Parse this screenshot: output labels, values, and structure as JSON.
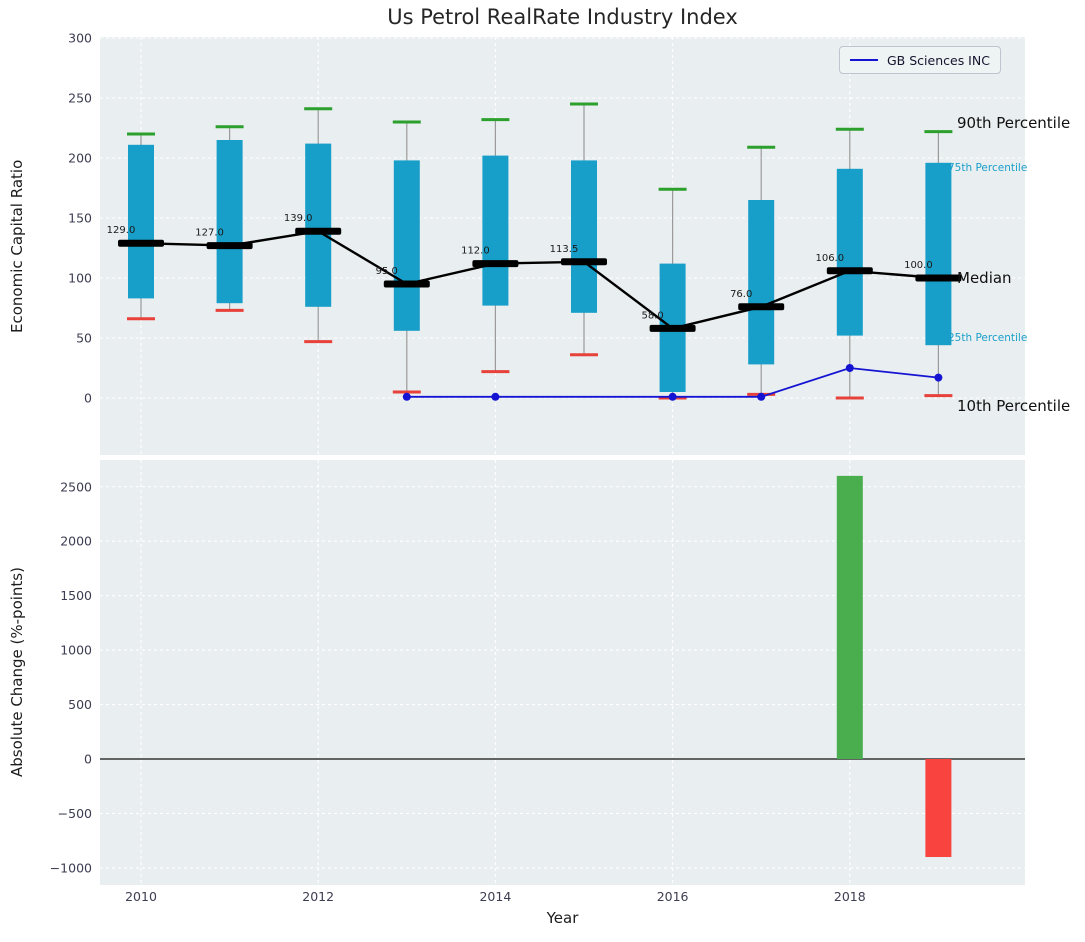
{
  "title": "Us Petrol RealRate Industry Index",
  "legend": {
    "label": "GB Sciences INC"
  },
  "axes": {
    "top": {
      "ylabel": "Economic Capital Ratio"
    },
    "bottom": {
      "ylabel": "Absolute Change (%-points)",
      "xlabel": "Year"
    }
  },
  "annotations": {
    "p90": {
      "label": "90th Percentile",
      "color": "#111111"
    },
    "p75": {
      "label": "75th Percentile",
      "color": "#1a9fca"
    },
    "median": {
      "label": "Median",
      "color": "#111111"
    },
    "p25": {
      "label": "25th Percentile",
      "color": "#1a9fca"
    },
    "p10": {
      "label": "10th Percentile",
      "color": "#111111"
    }
  },
  "colors": {
    "plot_bg": "#e9eef0",
    "grid": "#ffffff",
    "box": "#189fc9",
    "whisker": "#9a9a9a",
    "cap_high": "#2ca02c",
    "cap_low": "#e8413a",
    "median": "#000000",
    "company": "#1414d2",
    "bar_up": "#4aae4f",
    "bar_down": "#f8433f",
    "tick": "#3d3d52",
    "title": "#262626"
  },
  "chart_data": [
    {
      "type": "boxplot_with_line",
      "title": "Us Petrol RealRate Industry Index",
      "ylabel": "Economic Capital Ratio",
      "ylim": [
        -47,
        300
      ],
      "yticks": [
        0,
        50,
        100,
        150,
        200,
        250,
        300
      ],
      "xticks": [
        2010,
        2012,
        2014,
        2016,
        2018
      ],
      "categories": [
        2010,
        2011,
        2012,
        2013,
        2014,
        2015,
        2016,
        2017,
        2018,
        2019
      ],
      "percentiles": {
        "p90": [
          220,
          226,
          241,
          230,
          232,
          245,
          174,
          209,
          224,
          222
        ],
        "p75": [
          211,
          215,
          212,
          198,
          202,
          198,
          112,
          165,
          191,
          196
        ],
        "median": [
          129,
          127,
          139,
          95,
          112,
          113.5,
          58,
          76,
          106,
          100
        ],
        "p25": [
          83,
          79,
          76,
          56,
          77,
          71,
          5,
          28,
          52,
          44
        ],
        "p10": [
          66,
          73,
          47,
          5,
          22,
          36,
          0,
          3,
          0,
          2
        ]
      },
      "median_labels": [
        "129.0",
        "127.0",
        "139.0",
        "95.0",
        "112.0",
        "113.5",
        "58.0",
        "76.0",
        "106.0",
        "100.0"
      ],
      "company_series": {
        "name": "GB Sciences INC",
        "x": [
          2013,
          2014,
          2016,
          2017,
          2018,
          2019
        ],
        "y": [
          1,
          1,
          1,
          1,
          25,
          17
        ]
      },
      "legend_position": "upper right",
      "grid": true
    },
    {
      "type": "bar",
      "ylabel": "Absolute Change (%-points)",
      "xlabel": "Year",
      "ylim": [
        -1000,
        2746
      ],
      "yticks": [
        -1000,
        -500,
        0,
        500,
        1000,
        1500,
        2000,
        2500
      ],
      "xticks": [
        2010,
        2012,
        2014,
        2016,
        2018
      ],
      "bars": [
        {
          "x": 2018,
          "value": 2600,
          "direction": "up"
        },
        {
          "x": 2019,
          "value": -900,
          "direction": "down"
        }
      ],
      "zero_line": true,
      "grid": true
    }
  ]
}
